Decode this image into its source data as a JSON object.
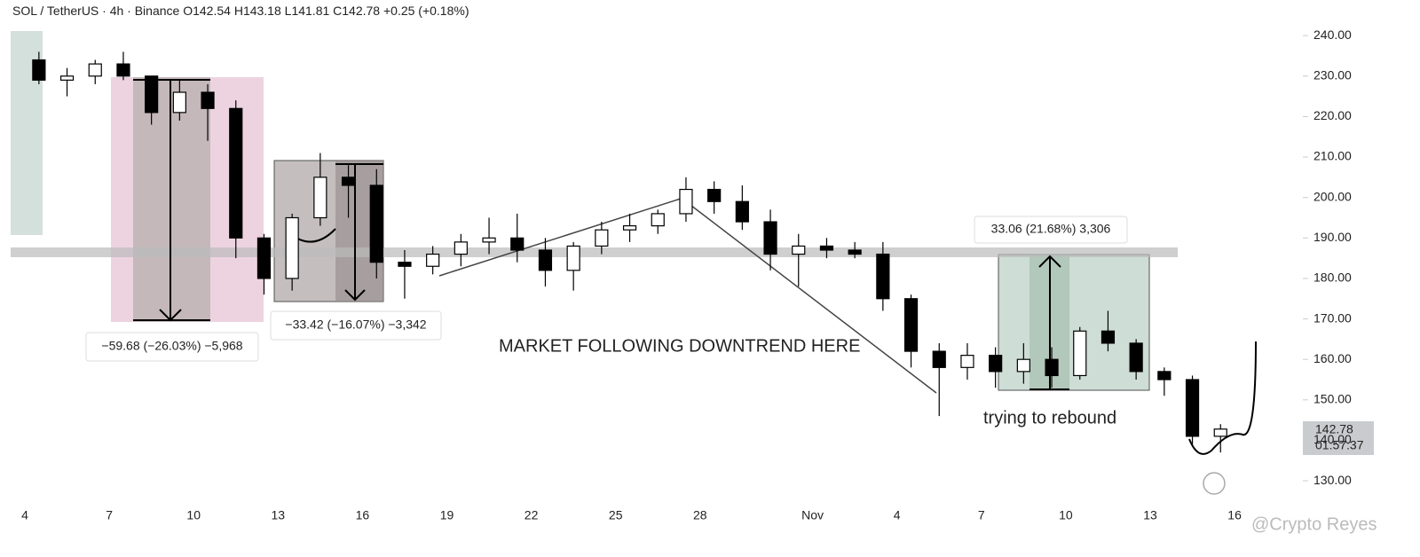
{
  "chart_data": {
    "type": "candlestick",
    "header": {
      "symbol": "SOL / TetherUS · 4h · Binance",
      "open": "O142.54",
      "high": "H143.18",
      "low": "L141.81",
      "close": "C142.78",
      "change": "+0.25 (+0.18%)"
    },
    "categories": [
      "4",
      null,
      null,
      "7",
      null,
      null,
      "10",
      null,
      null,
      "13",
      null,
      null,
      "16",
      null,
      null,
      "19",
      null,
      null,
      "22",
      null,
      null,
      "25",
      null,
      null,
      "28",
      null,
      null,
      null,
      "Nov",
      null,
      null,
      "4",
      null,
      null,
      "7",
      null,
      null,
      "10",
      null,
      null,
      "13",
      null,
      null,
      "16"
    ],
    "open": [
      234,
      229,
      230,
      233,
      230,
      221,
      226,
      222,
      190,
      180,
      195,
      205,
      203,
      184,
      183,
      186,
      189,
      190,
      187,
      182,
      188,
      192,
      193,
      196,
      202,
      199,
      194,
      186,
      188,
      187,
      186,
      175,
      162,
      158,
      161,
      157,
      160,
      156,
      167,
      164,
      157,
      155,
      141,
      null
    ],
    "high": [
      236,
      232,
      234,
      236,
      230,
      229,
      228,
      224,
      191,
      196,
      211,
      208,
      207,
      187,
      188,
      191,
      195,
      196,
      190,
      189,
      194,
      196,
      197,
      205,
      204,
      203,
      197,
      191,
      190,
      189,
      189,
      176,
      164,
      164,
      163,
      164,
      163,
      168,
      172,
      165,
      158,
      156,
      144,
      null
    ],
    "low": [
      228,
      225,
      228,
      229,
      218,
      219,
      214,
      185,
      176,
      177,
      193,
      195,
      180,
      175,
      181,
      183,
      186,
      184,
      178,
      177,
      186,
      189,
      191,
      194,
      196,
      192,
      182,
      178,
      185,
      185,
      172,
      158,
      146,
      155,
      153,
      154,
      153,
      155,
      162,
      155,
      151,
      139,
      137,
      null
    ],
    "close": [
      229,
      230,
      233,
      230,
      221,
      226,
      222,
      190,
      180,
      195,
      205,
      203,
      184,
      183,
      186,
      189,
      190,
      187,
      182,
      188,
      192,
      193,
      196,
      202,
      199,
      194,
      186,
      188,
      187,
      186,
      175,
      162,
      158,
      161,
      157,
      160,
      156,
      167,
      164,
      157,
      155,
      141,
      142.78,
      null
    ],
    "ylim": [
      119.5,
      248.8
    ],
    "yticks": [
      {
        "value": 130,
        "label": "130.00"
      },
      {
        "value": 140,
        "label": "140.00"
      },
      {
        "value": 150,
        "label": "150.00"
      },
      {
        "value": 160,
        "label": "160.00"
      },
      {
        "value": 170,
        "label": "170.00"
      },
      {
        "value": 180,
        "label": "180.00"
      },
      {
        "value": 190,
        "label": "190.00"
      },
      {
        "value": 200,
        "label": "200.00"
      },
      {
        "value": 210,
        "label": "210.00"
      },
      {
        "value": 220,
        "label": "220.00"
      },
      {
        "value": 230,
        "label": "230.00"
      },
      {
        "value": 240,
        "label": "240.00"
      }
    ],
    "last_price": {
      "value": 142.78,
      "label": "142.78"
    },
    "countdown": "01:57:37",
    "annotations": [
      "−59.68 (−26.03%) −5,968",
      "−33.42 (−16.07%) −3,342",
      "33.06 (21.68%) 3,306",
      "MARKET FOLLOWING DOWNTREND HERE",
      "trying to rebound"
    ],
    "watermark": "@Crypto Reyes"
  }
}
